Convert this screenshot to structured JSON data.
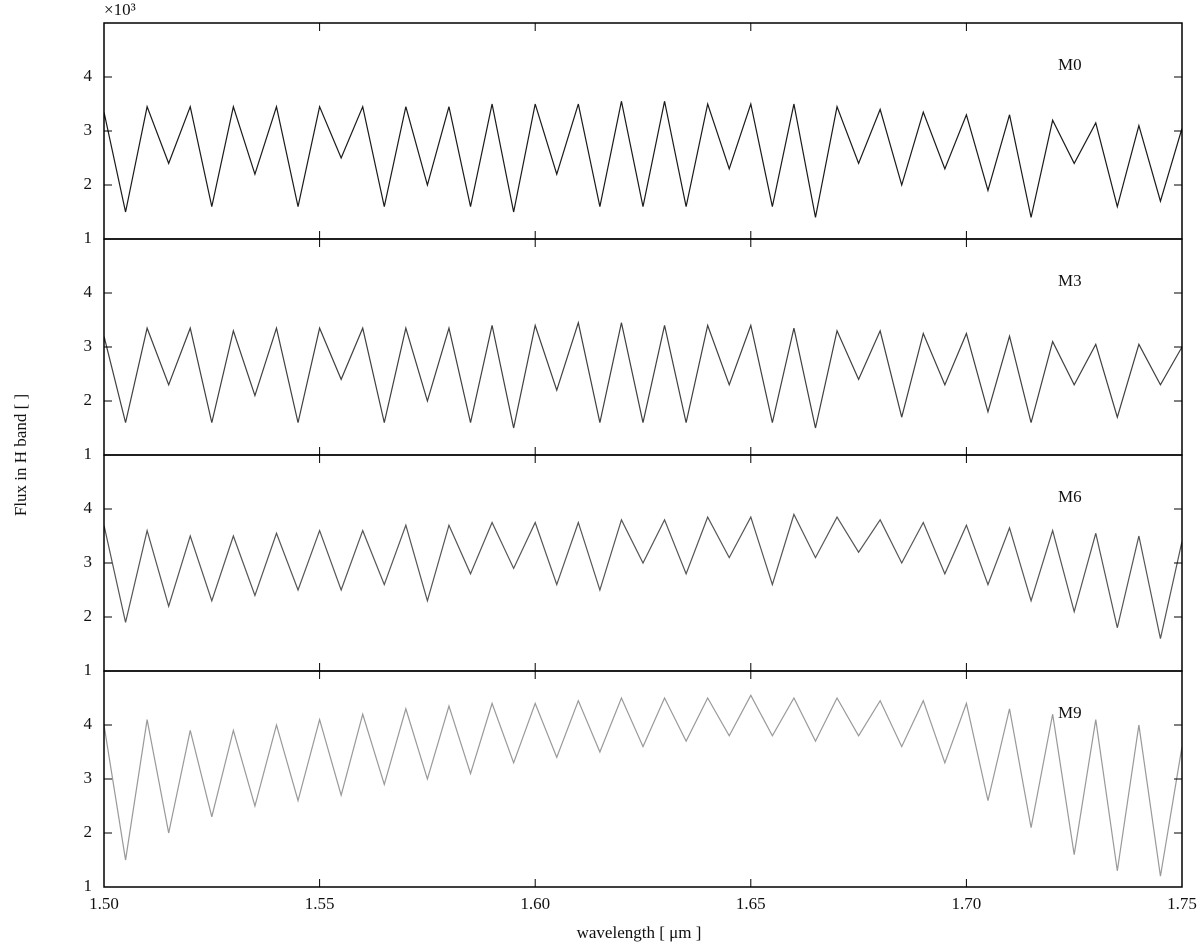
{
  "chart_data": [
    {
      "type": "line",
      "ylabel": "Flux in H band [ ]",
      "y_multiplier": "×10³",
      "xlim": [
        1.5,
        1.75
      ],
      "ylim": [
        1,
        5
      ],
      "yticks": [
        1,
        2,
        3,
        4
      ],
      "x": [
        1.5,
        1.505,
        1.51,
        1.515,
        1.52,
        1.525,
        1.53,
        1.535,
        1.54,
        1.545,
        1.55,
        1.555,
        1.56,
        1.565,
        1.57,
        1.575,
        1.58,
        1.585,
        1.59,
        1.595,
        1.6,
        1.605,
        1.61,
        1.615,
        1.62,
        1.625,
        1.63,
        1.635,
        1.64,
        1.645,
        1.65,
        1.655,
        1.66,
        1.665,
        1.67,
        1.675,
        1.68,
        1.685,
        1.69,
        1.695,
        1.7,
        1.705,
        1.71,
        1.715,
        1.72,
        1.725,
        1.73,
        1.735,
        1.74,
        1.745,
        1.75
      ],
      "series": [
        {
          "name": "M0",
          "color": "#1a1a1a",
          "values": [
            3.35,
            1.5,
            3.45,
            2.4,
            3.45,
            1.6,
            3.45,
            2.2,
            3.45,
            1.6,
            3.45,
            2.5,
            3.45,
            1.6,
            3.45,
            2.0,
            3.45,
            1.6,
            3.5,
            1.5,
            3.5,
            2.2,
            3.5,
            1.6,
            3.55,
            1.6,
            3.55,
            1.6,
            3.5,
            2.3,
            3.5,
            1.6,
            3.5,
            1.4,
            3.45,
            2.4,
            3.4,
            2.0,
            3.35,
            2.3,
            3.3,
            1.9,
            3.3,
            1.4,
            3.2,
            2.4,
            3.15,
            1.6,
            3.1,
            1.7,
            3.05
          ]
        }
      ]
    },
    {
      "type": "line",
      "xlim": [
        1.5,
        1.75
      ],
      "ylim": [
        1,
        5
      ],
      "yticks": [
        1,
        2,
        3,
        4
      ],
      "x": [
        1.5,
        1.505,
        1.51,
        1.515,
        1.52,
        1.525,
        1.53,
        1.535,
        1.54,
        1.545,
        1.55,
        1.555,
        1.56,
        1.565,
        1.57,
        1.575,
        1.58,
        1.585,
        1.59,
        1.595,
        1.6,
        1.605,
        1.61,
        1.615,
        1.62,
        1.625,
        1.63,
        1.635,
        1.64,
        1.645,
        1.65,
        1.655,
        1.66,
        1.665,
        1.67,
        1.675,
        1.68,
        1.685,
        1.69,
        1.695,
        1.7,
        1.705,
        1.71,
        1.715,
        1.72,
        1.725,
        1.73,
        1.735,
        1.74,
        1.745,
        1.75
      ],
      "series": [
        {
          "name": "M3",
          "color": "#404040",
          "values": [
            3.2,
            1.6,
            3.35,
            2.3,
            3.35,
            1.6,
            3.3,
            2.1,
            3.35,
            1.6,
            3.35,
            2.4,
            3.35,
            1.6,
            3.35,
            2.0,
            3.35,
            1.6,
            3.4,
            1.5,
            3.4,
            2.2,
            3.45,
            1.6,
            3.45,
            1.6,
            3.4,
            1.6,
            3.4,
            2.3,
            3.4,
            1.6,
            3.35,
            1.5,
            3.3,
            2.4,
            3.3,
            1.7,
            3.25,
            2.3,
            3.25,
            1.8,
            3.2,
            1.6,
            3.1,
            2.3,
            3.05,
            1.7,
            3.05,
            2.3,
            3.0
          ]
        }
      ]
    },
    {
      "type": "line",
      "xlim": [
        1.5,
        1.75
      ],
      "ylim": [
        1,
        5
      ],
      "yticks": [
        1,
        2,
        3,
        4
      ],
      "x": [
        1.5,
        1.505,
        1.51,
        1.515,
        1.52,
        1.525,
        1.53,
        1.535,
        1.54,
        1.545,
        1.55,
        1.555,
        1.56,
        1.565,
        1.57,
        1.575,
        1.58,
        1.585,
        1.59,
        1.595,
        1.6,
        1.605,
        1.61,
        1.615,
        1.62,
        1.625,
        1.63,
        1.635,
        1.64,
        1.645,
        1.65,
        1.655,
        1.66,
        1.665,
        1.67,
        1.675,
        1.68,
        1.685,
        1.69,
        1.695,
        1.7,
        1.705,
        1.71,
        1.715,
        1.72,
        1.725,
        1.73,
        1.735,
        1.74,
        1.745,
        1.75
      ],
      "series": [
        {
          "name": "M6",
          "color": "#555555",
          "values": [
            3.7,
            1.9,
            3.6,
            2.2,
            3.5,
            2.3,
            3.5,
            2.4,
            3.55,
            2.5,
            3.6,
            2.5,
            3.6,
            2.6,
            3.7,
            2.3,
            3.7,
            2.8,
            3.75,
            2.9,
            3.75,
            2.6,
            3.75,
            2.5,
            3.8,
            3.0,
            3.8,
            2.8,
            3.85,
            3.1,
            3.85,
            2.6,
            3.9,
            3.1,
            3.85,
            3.2,
            3.8,
            3.0,
            3.75,
            2.8,
            3.7,
            2.6,
            3.65,
            2.3,
            3.6,
            2.1,
            3.55,
            1.8,
            3.5,
            1.6,
            3.4
          ]
        }
      ]
    },
    {
      "type": "line",
      "xlabel": "wavelength [ μm ]",
      "xlim": [
        1.5,
        1.75
      ],
      "ylim": [
        1,
        5
      ],
      "yticks": [
        1,
        2,
        3,
        4
      ],
      "xticks": [
        {
          "value": 1.5,
          "label": "1.50"
        },
        {
          "value": 1.55,
          "label": "1.55"
        },
        {
          "value": 1.6,
          "label": "1.60"
        },
        {
          "value": 1.65,
          "label": "1.65"
        },
        {
          "value": 1.7,
          "label": "1.70"
        },
        {
          "value": 1.75,
          "label": "1.75"
        }
      ],
      "x": [
        1.5,
        1.505,
        1.51,
        1.515,
        1.52,
        1.525,
        1.53,
        1.535,
        1.54,
        1.545,
        1.55,
        1.555,
        1.56,
        1.565,
        1.57,
        1.575,
        1.58,
        1.585,
        1.59,
        1.595,
        1.6,
        1.605,
        1.61,
        1.615,
        1.62,
        1.625,
        1.63,
        1.635,
        1.64,
        1.645,
        1.65,
        1.655,
        1.66,
        1.665,
        1.67,
        1.675,
        1.68,
        1.685,
        1.69,
        1.695,
        1.7,
        1.705,
        1.71,
        1.715,
        1.72,
        1.725,
        1.73,
        1.735,
        1.74,
        1.745,
        1.75
      ],
      "series": [
        {
          "name": "M9",
          "color": "#999999",
          "values": [
            4.0,
            1.5,
            4.1,
            2.0,
            3.9,
            2.3,
            3.9,
            2.5,
            4.0,
            2.6,
            4.1,
            2.7,
            4.2,
            2.9,
            4.3,
            3.0,
            4.35,
            3.1,
            4.4,
            3.3,
            4.4,
            3.4,
            4.45,
            3.5,
            4.5,
            3.6,
            4.5,
            3.7,
            4.5,
            3.8,
            4.55,
            3.8,
            4.5,
            3.7,
            4.5,
            3.8,
            4.45,
            3.6,
            4.45,
            3.3,
            4.4,
            2.6,
            4.3,
            2.1,
            4.2,
            1.6,
            4.1,
            1.3,
            4.0,
            1.2,
            3.6
          ]
        }
      ]
    }
  ]
}
